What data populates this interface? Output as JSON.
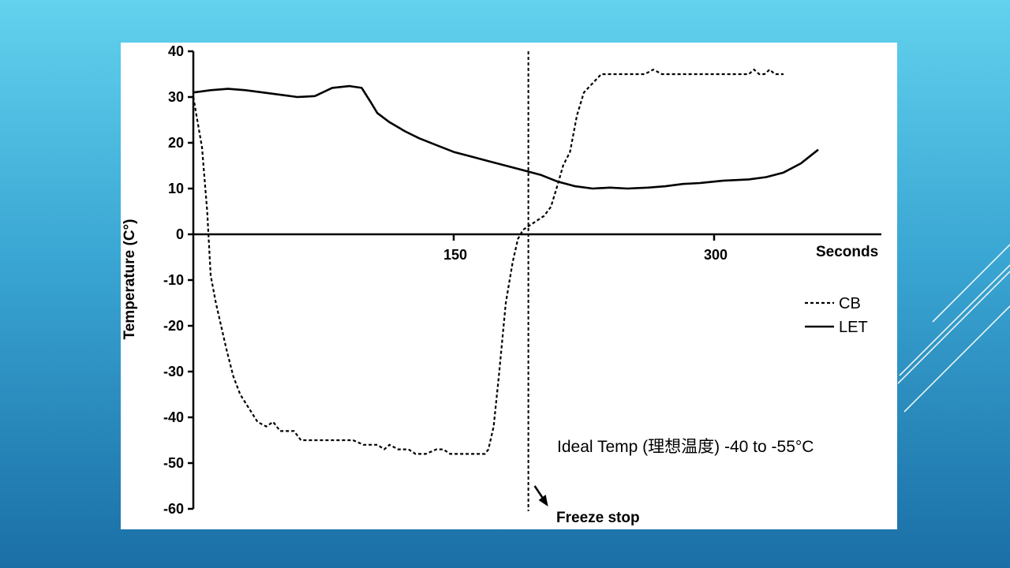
{
  "colors": {
    "background_top": "#62d2ee",
    "background_bottom": "#1a6fa6",
    "panel": "#ffffff",
    "ink": "#000000",
    "deco_lines": "#ffffff"
  },
  "chart_data": {
    "type": "line",
    "xlabel": "Seconds",
    "ylabel": "Temperature (C°)",
    "xlim": [
      0,
      355
    ],
    "ylim": [
      -60,
      40
    ],
    "x_ticks": [
      "150",
      "300"
    ],
    "y_ticks": [
      "40",
      "30",
      "20",
      "10",
      "0",
      "-10",
      "-20",
      "-30",
      "-40",
      "-50",
      "-60"
    ],
    "grid": false,
    "legend_position": "right",
    "series": [
      {
        "name": "CB",
        "style": "dashed",
        "points": [
          [
            0,
            30
          ],
          [
            5,
            19
          ],
          [
            8,
            5
          ],
          [
            10,
            -9
          ],
          [
            13,
            -15
          ],
          [
            16,
            -20
          ],
          [
            19,
            -25
          ],
          [
            23,
            -31
          ],
          [
            27,
            -35
          ],
          [
            32,
            -38
          ],
          [
            37,
            -41
          ],
          [
            42,
            -42
          ],
          [
            46,
            -41
          ],
          [
            50,
            -43
          ],
          [
            54,
            -43
          ],
          [
            58,
            -43
          ],
          [
            62,
            -45
          ],
          [
            70,
            -45
          ],
          [
            80,
            -45
          ],
          [
            92,
            -45
          ],
          [
            98,
            -46
          ],
          [
            106,
            -46
          ],
          [
            110,
            -47
          ],
          [
            113,
            -46
          ],
          [
            118,
            -47
          ],
          [
            124,
            -47
          ],
          [
            128,
            -48
          ],
          [
            134,
            -48
          ],
          [
            140,
            -47
          ],
          [
            144,
            -47
          ],
          [
            148,
            -48
          ],
          [
            160,
            -48
          ],
          [
            168,
            -48
          ],
          [
            170,
            -47
          ],
          [
            173,
            -42
          ],
          [
            176,
            -31
          ],
          [
            180,
            -15
          ],
          [
            184,
            -6
          ],
          [
            187,
            -1
          ],
          [
            190,
            1
          ],
          [
            194,
            2
          ],
          [
            198,
            3
          ],
          [
            202,
            4
          ],
          [
            206,
            6
          ],
          [
            210,
            11
          ],
          [
            213,
            15
          ],
          [
            217,
            18
          ],
          [
            221,
            26
          ],
          [
            225,
            31
          ],
          [
            230,
            33
          ],
          [
            235,
            35
          ],
          [
            245,
            35
          ],
          [
            260,
            35
          ],
          [
            265,
            36
          ],
          [
            270,
            35
          ],
          [
            285,
            35
          ],
          [
            300,
            35
          ],
          [
            320,
            35
          ],
          [
            323,
            36
          ],
          [
            326,
            35
          ],
          [
            329,
            35
          ],
          [
            332,
            36
          ],
          [
            335,
            35
          ],
          [
            340,
            35
          ]
        ]
      },
      {
        "name": "LET",
        "style": "solid",
        "points": [
          [
            0,
            31
          ],
          [
            10,
            31.5
          ],
          [
            20,
            31.8
          ],
          [
            30,
            31.5
          ],
          [
            40,
            31
          ],
          [
            50,
            30.5
          ],
          [
            60,
            30
          ],
          [
            70,
            30.2
          ],
          [
            80,
            32
          ],
          [
            90,
            32.4
          ],
          [
            97,
            32
          ],
          [
            102,
            29
          ],
          [
            106,
            26.5
          ],
          [
            113,
            24.5
          ],
          [
            122,
            22.5
          ],
          [
            130,
            21
          ],
          [
            140,
            19.5
          ],
          [
            150,
            18
          ],
          [
            160,
            17
          ],
          [
            170,
            16
          ],
          [
            180,
            15
          ],
          [
            190,
            14
          ],
          [
            200,
            13
          ],
          [
            210,
            11.5
          ],
          [
            220,
            10.5
          ],
          [
            230,
            10
          ],
          [
            240,
            10.2
          ],
          [
            250,
            10
          ],
          [
            262,
            10.2
          ],
          [
            272,
            10.5
          ],
          [
            282,
            11
          ],
          [
            292,
            11.2
          ],
          [
            305,
            11.7
          ],
          [
            320,
            12
          ],
          [
            330,
            12.5
          ],
          [
            340,
            13.5
          ],
          [
            350,
            15.5
          ],
          [
            360,
            18.5
          ]
        ]
      }
    ],
    "annotations": {
      "freeze_stop_x": 193,
      "freeze_stop_label": "Freeze stop",
      "ideal_temp": "Ideal Temp (理想温度)  -40 to -55°C"
    }
  }
}
